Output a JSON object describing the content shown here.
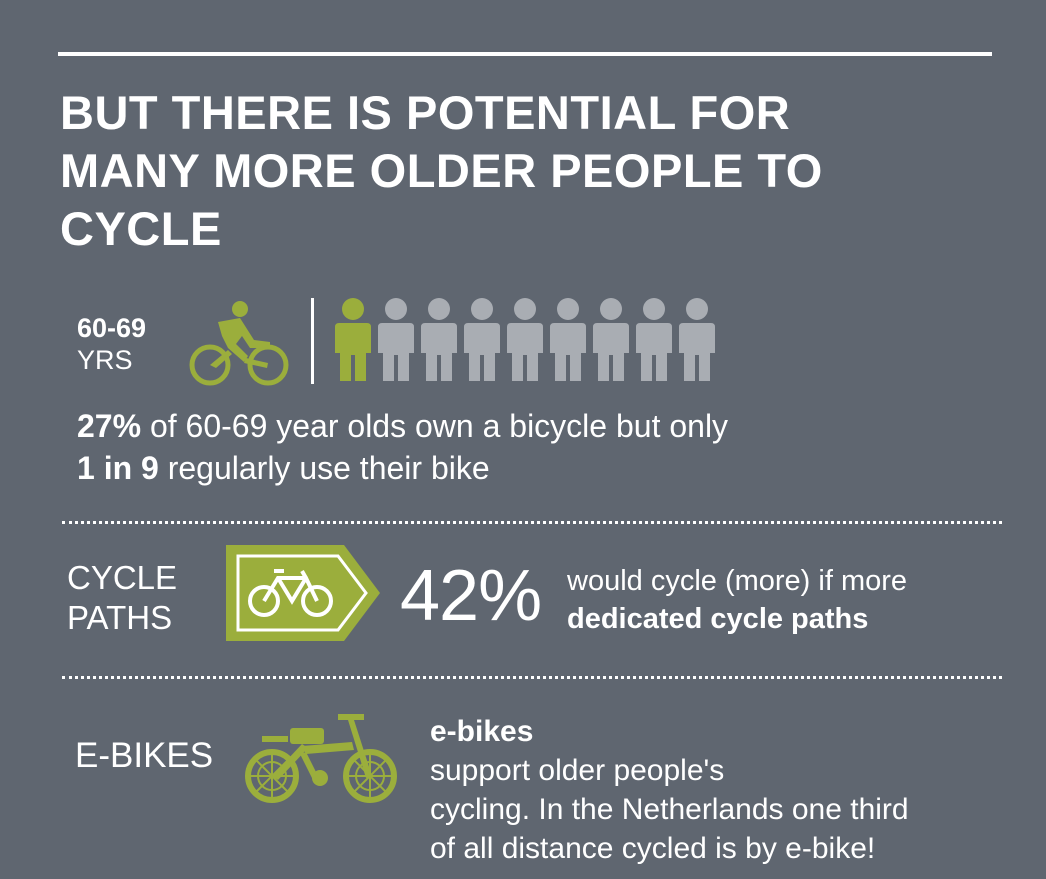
{
  "colors": {
    "background": "#5f6670",
    "accent_green": "#9bae3c",
    "person_grey": "#a9adb3",
    "text": "#ffffff"
  },
  "headline": {
    "line1": "BUT THERE IS POTENTIAL FOR",
    "line2": "MANY MORE OLDER PEOPLE TO",
    "line3": "CYCLE"
  },
  "age_group": {
    "range": "60-69",
    "unit": "YRS",
    "people_total": 9,
    "people_highlighted": 1
  },
  "ownership_stat": {
    "pct": "27%",
    "line1_rest": " of 60-69 year olds own a bicycle but only",
    "ratio": "1 in 9",
    "line2_rest": " regularly use their bike"
  },
  "cycle_paths": {
    "label_line1": "CYCLE",
    "label_line2": "PATHS",
    "pct": "42%",
    "text_line1": "would cycle (more) if more",
    "text_line2": "dedicated cycle paths"
  },
  "ebikes": {
    "label": "E-BIKES",
    "lead": "e-bikes",
    "line1_rest": " support older people's",
    "line2": "cycling. In the Netherlands one third",
    "line3": "of all distance cycled is by e-bike!"
  }
}
